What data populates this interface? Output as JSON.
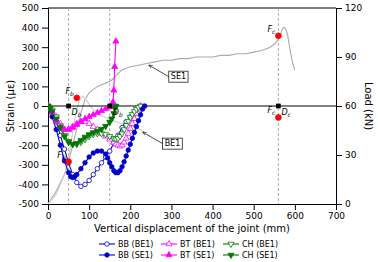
{
  "chart_data": {
    "type": "line",
    "xlabel": "Vertical displacement of the joint (mm)",
    "ylabel": "Strain (με)",
    "y2label": "Load (kN)",
    "xlim": [
      0,
      700
    ],
    "ylim": [
      -500,
      500
    ],
    "y2lim": [
      0,
      120
    ],
    "xticks": [
      0,
      100,
      200,
      300,
      400,
      500,
      600,
      700
    ],
    "yticks": [
      -500,
      -400,
      -300,
      -200,
      -100,
      0,
      100,
      200,
      300,
      400,
      500
    ],
    "y2ticks": [
      0,
      30,
      60,
      90,
      120
    ],
    "grid": false,
    "legend": "bottom",
    "series": [
      {
        "type": "line",
        "axis": "y2",
        "color": "#aaaaaa",
        "x": [
          0,
          20,
          40,
          50,
          60,
          70,
          80,
          90,
          100,
          110,
          120,
          130,
          140,
          150,
          160,
          170,
          180,
          200,
          220,
          240,
          260,
          280,
          300,
          320,
          340,
          360,
          380,
          400,
          420,
          440,
          460,
          480,
          500,
          520,
          540,
          555,
          560,
          565,
          568,
          572,
          575,
          578,
          582,
          586,
          590,
          595,
          600
        ],
        "values": [
          0,
          8,
          18,
          26,
          36,
          46,
          56,
          64,
          68,
          70,
          72,
          73,
          74,
          75,
          77,
          80,
          82,
          84,
          85,
          86,
          87,
          88,
          88,
          89,
          89,
          90,
          90,
          90,
          91,
          91,
          92,
          92,
          93,
          94,
          96,
          99,
          101,
          103,
          106,
          108,
          108,
          107,
          104,
          98,
          92,
          86,
          82
        ]
      },
      {
        "type": "line",
        "axis": "y2",
        "color": "#cccccc",
        "x": [
          0,
          20,
          40,
          50,
          55,
          60,
          65,
          70,
          75,
          80,
          85,
          90,
          95,
          100,
          110,
          120,
          130,
          140,
          150,
          160,
          170,
          180,
          200,
          220,
          235
        ],
        "values": [
          0,
          6,
          18,
          28,
          36,
          44,
          52,
          58,
          62,
          65,
          66,
          65,
          63,
          61,
          58,
          56,
          54,
          53,
          52,
          51,
          50,
          49,
          48,
          46,
          44
        ]
      },
      {
        "name": "BB (BE1)",
        "type": "line",
        "color": "#0000cc",
        "marker": "circle-open",
        "x": [
          0,
          5,
          10,
          20,
          30,
          40,
          50,
          60,
          70,
          80,
          90,
          100,
          110,
          120,
          130,
          140,
          150,
          160,
          170,
          180,
          190,
          200,
          210,
          220,
          225
        ],
        "values": [
          0,
          -10,
          -30,
          -80,
          -150,
          -220,
          -290,
          -350,
          -390,
          -410,
          -400,
          -380,
          -350,
          -320,
          -290,
          -260,
          -230,
          -190,
          -150,
          -110,
          -80,
          -55,
          -30,
          -10,
          0
        ]
      },
      {
        "name": "BT (BE1)",
        "type": "line",
        "color": "#ff00ff",
        "marker": "triangle-up-open",
        "x": [
          0,
          5,
          10,
          20,
          30,
          40,
          50,
          60,
          70,
          80,
          90,
          100,
          110,
          120,
          130,
          140,
          150,
          160,
          165,
          170,
          175,
          180,
          185,
          190,
          195,
          200,
          205,
          210,
          215,
          220,
          225
        ],
        "values": [
          0,
          -10,
          -25,
          -55,
          -90,
          -120,
          -120,
          -105,
          -90,
          -80,
          -80,
          -90,
          -105,
          -120,
          -140,
          -155,
          -170,
          -185,
          -195,
          -200,
          -205,
          -200,
          -185,
          -165,
          -140,
          -115,
          -90,
          -65,
          -40,
          -18,
          0
        ]
      },
      {
        "name": "CH (BE1)",
        "type": "line",
        "color": "#007700",
        "marker": "triangle-down-open",
        "x": [
          0,
          5,
          10,
          20,
          30,
          40,
          50,
          60,
          70,
          80,
          90,
          100,
          110,
          120,
          130,
          140,
          150,
          160,
          165,
          170,
          175,
          180,
          185,
          190,
          195,
          200,
          205,
          210,
          215,
          220,
          225
        ],
        "values": [
          0,
          -8,
          -20,
          -55,
          -100,
          -150,
          -180,
          -195,
          -195,
          -185,
          -170,
          -155,
          -145,
          -140,
          -140,
          -145,
          -155,
          -165,
          -168,
          -165,
          -155,
          -140,
          -120,
          -98,
          -77,
          -58,
          -42,
          -28,
          -16,
          -6,
          0
        ]
      },
      {
        "name": "BB (SE1)",
        "type": "line",
        "color": "#0000cc",
        "marker": "circle",
        "x": [
          0,
          5,
          10,
          20,
          30,
          40,
          50,
          55,
          60,
          65,
          70,
          80,
          90,
          100,
          110,
          120,
          130,
          140,
          145,
          150,
          155,
          160,
          165,
          170,
          175,
          180,
          185,
          190,
          195,
          200,
          205,
          210,
          215,
          220,
          225,
          230,
          235
        ],
        "values": [
          0,
          -20,
          -55,
          -120,
          -200,
          -280,
          -340,
          -360,
          -365,
          -360,
          -350,
          -320,
          -290,
          -260,
          -240,
          -230,
          -230,
          -245,
          -265,
          -290,
          -310,
          -330,
          -340,
          -340,
          -330,
          -310,
          -285,
          -255,
          -225,
          -195,
          -165,
          -135,
          -105,
          -75,
          -45,
          -15,
          0
        ]
      },
      {
        "name": "BT (SE1)",
        "type": "line",
        "color": "#ff00ff",
        "marker": "triangle-up",
        "x": [
          0,
          5,
          10,
          20,
          30,
          40,
          50,
          60,
          70,
          80,
          90,
          100,
          110,
          120,
          130,
          140,
          150,
          155,
          158,
          160,
          162,
          165
        ],
        "values": [
          0,
          -15,
          -35,
          -75,
          -105,
          -120,
          -120,
          -110,
          -95,
          -80,
          -65,
          -55,
          -45,
          -35,
          -25,
          -15,
          -5,
          5,
          20,
          80,
          200,
          330
        ]
      },
      {
        "name": "CH (SE1)",
        "type": "line",
        "color": "#007700",
        "marker": "triangle-down",
        "x": [
          0,
          5,
          10,
          20,
          30,
          40,
          50,
          60,
          70,
          80,
          90,
          100,
          110,
          120,
          130,
          140,
          150,
          155,
          160,
          163,
          165
        ],
        "values": [
          0,
          -12,
          -28,
          -65,
          -110,
          -155,
          -185,
          -195,
          -190,
          -175,
          -158,
          -145,
          -135,
          -128,
          -118,
          -103,
          -82,
          -65,
          -38,
          -12,
          0
        ]
      },
      {
        "type": "scatter",
        "axis": "y2",
        "color": "red",
        "marker": "circle",
        "x": [
          50,
          560,
          70,
          560
        ],
        "values": [
          26,
          103,
          65,
          53
        ]
      }
    ],
    "hline": 0,
    "vlines": [
      50,
      150,
      560
    ],
    "vline_labels": [
      "Db",
      "Db",
      "Dc"
    ],
    "annotations": [
      {
        "text": "Fb",
        "x": 50,
        "y": 26,
        "axis": "y2"
      },
      {
        "text": "Fb",
        "x": 70,
        "y": 65,
        "axis": "y2"
      },
      {
        "text": "Fc",
        "x": 560,
        "y": 103,
        "axis": "y2"
      },
      {
        "text": "Fc",
        "x": 560,
        "y": 53,
        "axis": "y2"
      },
      {
        "text": "SE1",
        "x": 245,
        "y": 85,
        "axis": "y2",
        "arrow": true
      },
      {
        "text": "BE1",
        "x": 230,
        "y": 44,
        "axis": "y2",
        "arrow": true
      }
    ]
  }
}
